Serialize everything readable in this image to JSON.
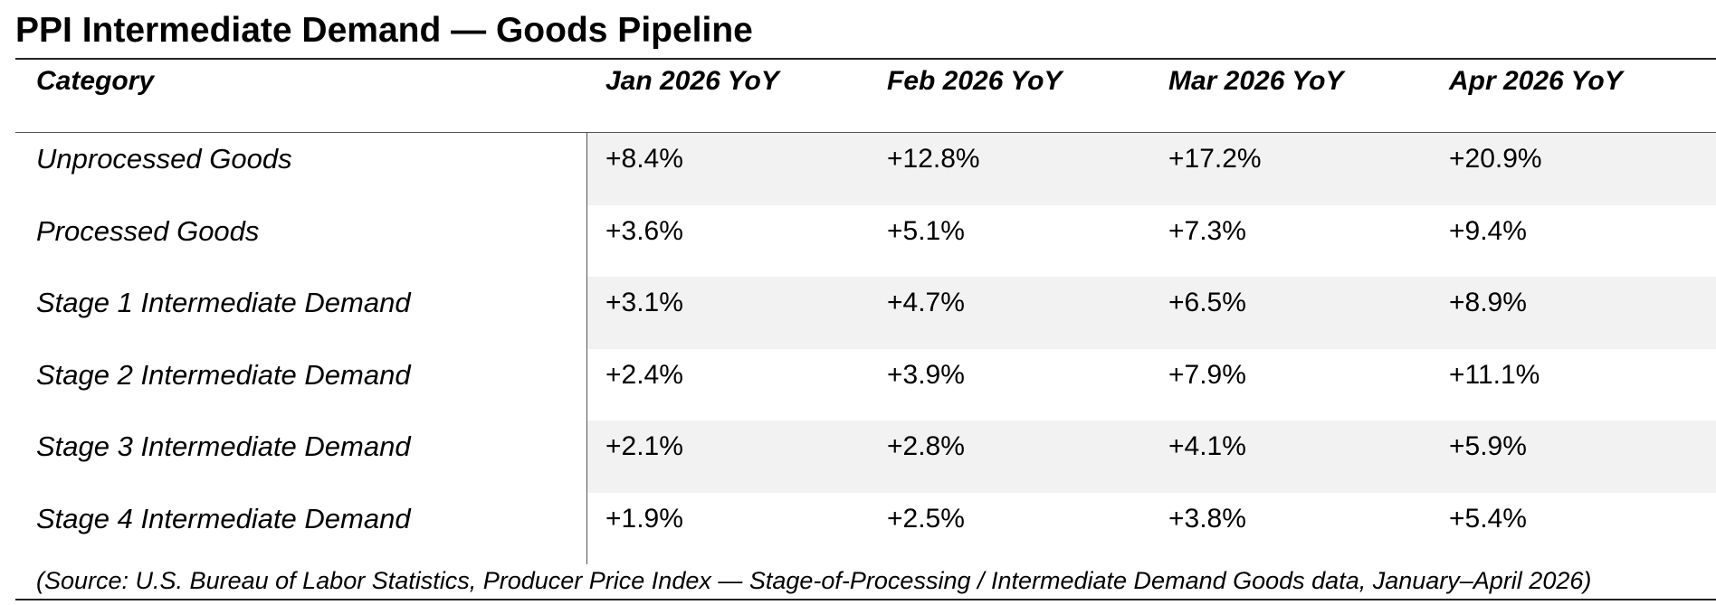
{
  "title": "PPI Intermediate Demand — Goods Pipeline",
  "table": {
    "headers": [
      "Category",
      "Jan 2026 YoY",
      "Feb 2026 YoY",
      "Mar 2026 YoY",
      "Apr 2026 YoY"
    ],
    "rows": [
      {
        "category": "Unprocessed Goods",
        "values": [
          "+8.4%",
          "+12.8%",
          "+17.2%",
          "+20.9%"
        ]
      },
      {
        "category": "Processed Goods",
        "values": [
          "+3.6%",
          "+5.1%",
          "+7.3%",
          "+9.4%"
        ]
      },
      {
        "category": "Stage 1 Intermediate Demand",
        "values": [
          "+3.1%",
          "+4.7%",
          "+6.5%",
          "+8.9%"
        ]
      },
      {
        "category": "Stage 2 Intermediate Demand",
        "values": [
          "+2.4%",
          "+3.9%",
          "+7.9%",
          "+11.1%"
        ]
      },
      {
        "category": "Stage 3 Intermediate Demand",
        "values": [
          "+2.1%",
          "+2.8%",
          "+4.1%",
          "+5.9%"
        ]
      },
      {
        "category": "Stage 4 Intermediate Demand",
        "values": [
          "+1.9%",
          "+2.5%",
          "+3.8%",
          "+5.4%"
        ]
      }
    ]
  },
  "source": "(Source: U.S. Bureau of Labor Statistics, Producer Price Index — Stage-of-Processing / Intermediate Demand Goods data, January–April 2026)",
  "colors": {
    "shaded_row": "#f2f2f2",
    "rule": "#222222"
  }
}
